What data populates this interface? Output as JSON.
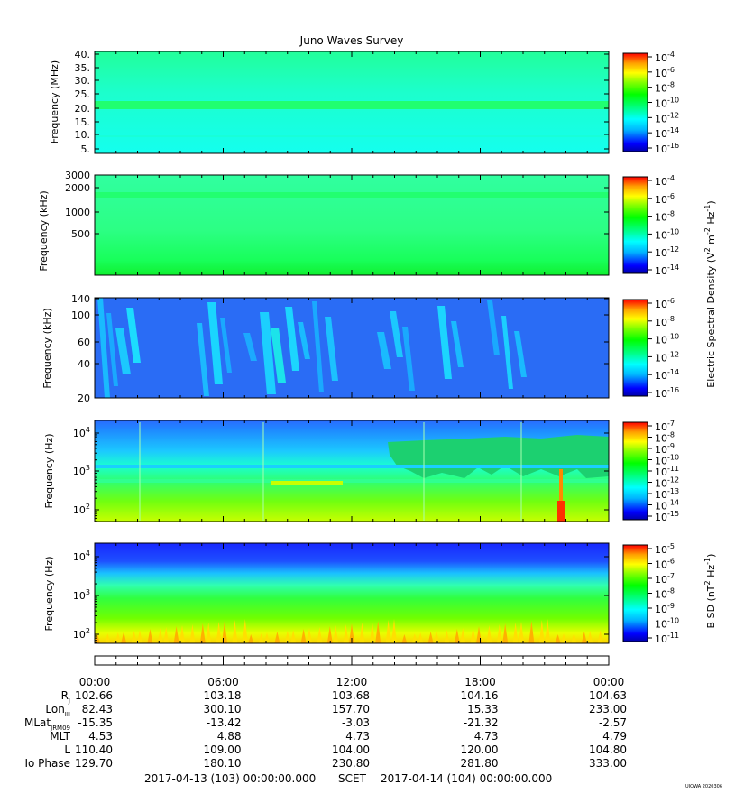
{
  "title": "Juno Waves Survey",
  "footer": {
    "start": "2017-04-13 (103) 00:00:00.000",
    "mid": "SCET",
    "end": "2017-04-14 (104) 00:00:00.000",
    "stamp": "UIOWA 2020306"
  },
  "colors": {
    "background_cyan": "#19ffe6",
    "colormap": [
      "#0000aa",
      "#0000ff",
      "#00b4ff",
      "#00ffff",
      "#00ff80",
      "#00ff00",
      "#80ff00",
      "#ffff00",
      "#ffa000",
      "#ff0000"
    ]
  },
  "chart_data": [
    {
      "type": "heatmap",
      "panel": "HFR high band",
      "ylabel": "Frequency (MHz)",
      "yticks": [
        "40.",
        "35.",
        "30.",
        "25.",
        "20.",
        "15.",
        "10.",
        "5."
      ],
      "yrange": [
        3,
        41
      ],
      "colorbar": {
        "base": "10",
        "exponents": [
          "-4",
          "-6",
          "-8",
          "-10",
          "-12",
          "-14",
          "-16"
        ]
      },
      "description_values": {
        "band_frequency_MHz": 21
      }
    },
    {
      "type": "heatmap",
      "panel": "HFR low band",
      "ylabel": "Frequency (kHz)",
      "yticks": [
        "3000",
        "2000",
        "1000",
        "500"
      ],
      "colorbar": {
        "base": "10",
        "exponents": [
          "-4",
          "-6",
          "-8",
          "-10",
          "-12",
          "-14"
        ]
      }
    },
    {
      "type": "heatmap",
      "panel": "LFR high",
      "ylabel": "Frequency (kHz)",
      "yticks": [
        "140",
        "100",
        "60",
        "40",
        "20"
      ],
      "colorbar": {
        "base": "10",
        "exponents": [
          "-6",
          "-8",
          "-10",
          "-12",
          "-14",
          "-16"
        ]
      }
    },
    {
      "type": "heatmap",
      "panel": "LFR low",
      "ylabel": "Frequency (Hz)",
      "yticks": [
        {
          "base": "10",
          "exp": "4"
        },
        {
          "base": "10",
          "exp": "3"
        },
        {
          "base": "10",
          "exp": "2"
        }
      ],
      "colorbar": {
        "base": "10",
        "exponents": [
          "-7",
          "-8",
          "-9",
          "-10",
          "-11",
          "-12",
          "-13",
          "-14",
          "-15"
        ]
      }
    },
    {
      "type": "heatmap",
      "panel": "Magnetic",
      "ylabel": "Frequency (Hz)",
      "yticks": [
        {
          "base": "10",
          "exp": "4"
        },
        {
          "base": "10",
          "exp": "3"
        },
        {
          "base": "10",
          "exp": "2"
        }
      ],
      "colorbar": {
        "base": "10",
        "exponents": [
          "-5",
          "-6",
          "-7",
          "-8",
          "-9",
          "-10",
          "-11"
        ]
      },
      "colorbar_label": "B SD (nT",
      "colorbar_label_unit": " Hz",
      "colorbar_label_sup1": "2",
      "colorbar_label_sup2": "-1",
      "colorbar_label_end": ")"
    }
  ],
  "shared_colorbar_label": {
    "text": "Electric Spectral Density (V",
    "sup1": "2",
    "mid1": " m",
    "sup2": "-2",
    "mid2": " Hz",
    "sup3": "-1",
    "end": ")"
  },
  "time_axis": {
    "labels": [
      "00:00",
      "06:00",
      "12:00",
      "18:00",
      "00:00"
    ]
  },
  "ephemeris": [
    {
      "label": "R",
      "sub": "J",
      "values": [
        "102.66",
        "103.18",
        "103.68",
        "104.16",
        "104.63"
      ]
    },
    {
      "label": "Lon",
      "sub": "III",
      "values": [
        "82.43",
        "300.10",
        "157.70",
        "15.33",
        "233.00"
      ]
    },
    {
      "label": "MLat",
      "sub": "JRM09",
      "values": [
        "-15.35",
        "-13.42",
        "-3.03",
        "-21.32",
        "-2.57"
      ]
    },
    {
      "label": "MLT",
      "sub": "",
      "values": [
        "4.53",
        "4.88",
        "4.73",
        "4.73",
        "4.79"
      ]
    },
    {
      "label": "L",
      "sub": "",
      "values": [
        "110.40",
        "109.00",
        "104.00",
        "120.00",
        "104.80"
      ]
    },
    {
      "label": "Io Phase",
      "sub": "",
      "values": [
        "129.70",
        "180.10",
        "230.80",
        "281.80",
        "333.00"
      ]
    }
  ]
}
